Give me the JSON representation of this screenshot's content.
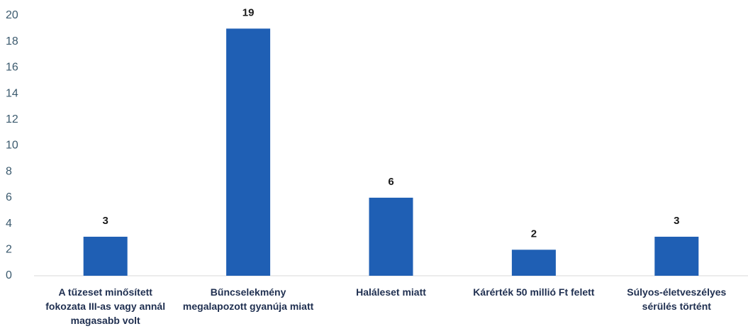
{
  "chart_data": {
    "type": "bar",
    "categories": [
      "A tűzeset minősített fokozata III-as vagy annál magasabb volt",
      "Bűncselekmény megalapozott gyanúja miatt",
      "Haláleset miatt",
      "Kárérték 50 millió Ft felett",
      "Súlyos-életveszélyes sérülés történt"
    ],
    "values": [
      3,
      19,
      6,
      2,
      3
    ],
    "color": "#1f5fb4",
    "ylim": [
      0,
      20
    ],
    "yticks": [
      0,
      2,
      4,
      6,
      8,
      10,
      12,
      14,
      16,
      18,
      20
    ]
  }
}
